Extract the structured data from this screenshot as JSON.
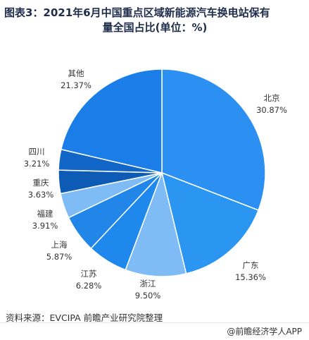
{
  "title_line1": "图表3：2021年6月中国重点区域新能源汽车换电站保有",
  "title_line2": "量全国占比(单位：%)",
  "source": "资料来源：EVCIPA 前瞻产业研究院整理",
  "brand": "@前瞻经济学人APP",
  "chart_data": {
    "type": "pie",
    "title": "图表3：2021年6月中国重点区域新能源汽车换电站保有量全国占比(单位：%)",
    "unit": "%",
    "slices": [
      {
        "name": "北京",
        "value": 30.87,
        "label": "30.87%",
        "color": "#2c8ff2"
      },
      {
        "name": "广东",
        "value": 15.36,
        "label": "15.36%",
        "color": "#2a96f2"
      },
      {
        "name": "浙江",
        "value": 9.5,
        "label": "9.50%",
        "color": "#7fbbf5"
      },
      {
        "name": "江苏",
        "value": 6.28,
        "label": "6.28%",
        "color": "#1e88ec"
      },
      {
        "name": "上海",
        "value": 5.87,
        "label": "5.87%",
        "color": "#2286e8"
      },
      {
        "name": "福建",
        "value": 3.91,
        "label": "3.91%",
        "color": "#7fbbf5"
      },
      {
        "name": "重庆",
        "value": 3.63,
        "label": "3.63%",
        "color": "#0d5bb5"
      },
      {
        "name": "四川",
        "value": 3.21,
        "label": "3.21%",
        "color": "#1266c8"
      },
      {
        "name": "其他",
        "value": 21.37,
        "label": "21.37%",
        "color": "#1b7ee8"
      }
    ]
  }
}
